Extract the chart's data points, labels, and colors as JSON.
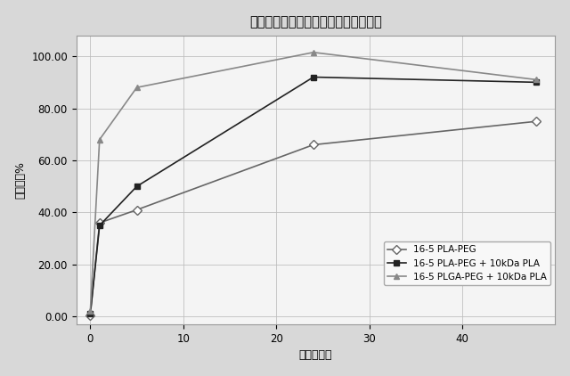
{
  "title": "ビノレルビンベース：インビトロ放出",
  "xlabel": "時点（時）",
  "ylabel": "累計放出%",
  "xlim": [
    -1.5,
    50
  ],
  "ylim": [
    -3,
    108
  ],
  "xticks": [
    0,
    10,
    20,
    30,
    40
  ],
  "yticks": [
    0.0,
    20.0,
    40.0,
    60.0,
    80.0,
    100.0
  ],
  "ytick_labels": [
    "0.00",
    "20.00",
    "40.00",
    "60.00",
    "80.00",
    "100.00"
  ],
  "series": [
    {
      "label": "16-5 PLA-PEG",
      "x": [
        0,
        1,
        5,
        24,
        48
      ],
      "y": [
        0.5,
        36.0,
        41.0,
        66.0,
        75.0
      ],
      "color": "#666666",
      "marker": "D",
      "linestyle": "-",
      "linewidth": 1.2,
      "markersize": 5,
      "mfc": "white"
    },
    {
      "label": "16-5 PLA-PEG + 10kDa PLA",
      "x": [
        0,
        1,
        5,
        24,
        48
      ],
      "y": [
        1.0,
        35.0,
        50.0,
        92.0,
        90.0
      ],
      "color": "#222222",
      "marker": "s",
      "linestyle": "-",
      "linewidth": 1.2,
      "markersize": 5,
      "mfc": "#222222"
    },
    {
      "label": "16-5 PLGA-PEG + 10kDa PLA",
      "x": [
        0,
        1,
        5,
        24,
        48
      ],
      "y": [
        2.0,
        68.0,
        88.0,
        101.5,
        91.0
      ],
      "color": "#888888",
      "marker": "^",
      "linestyle": "-",
      "linewidth": 1.2,
      "markersize": 5,
      "mfc": "#888888"
    }
  ],
  "background_color": "#d8d8d8",
  "plot_bg_color": "#f4f4f4",
  "grid_color": "#bbbbbb",
  "title_fontsize": 10.5,
  "label_fontsize": 9,
  "tick_fontsize": 8.5,
  "legend_fontsize": 7.5
}
